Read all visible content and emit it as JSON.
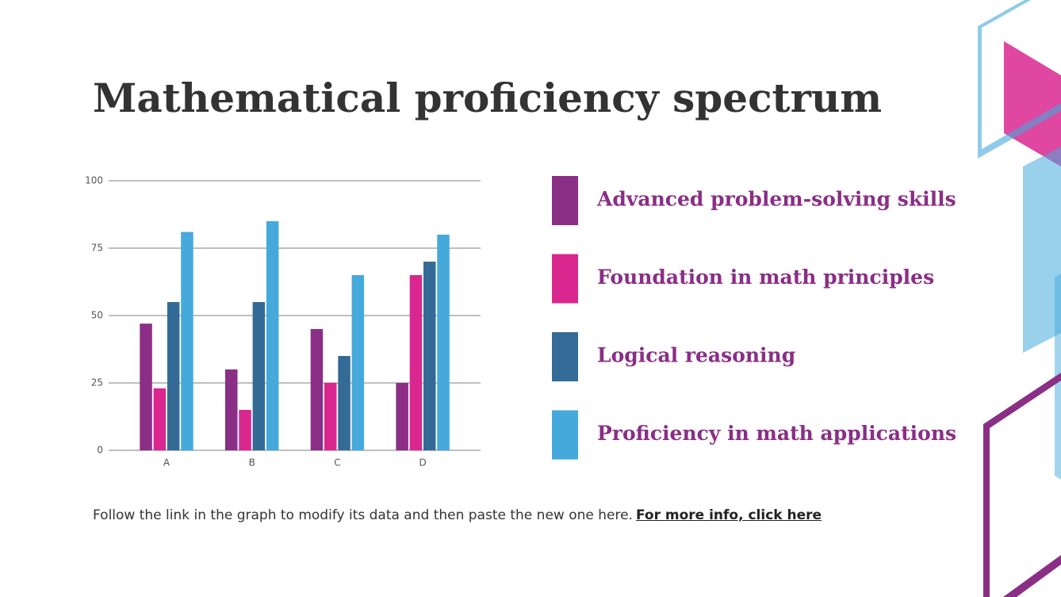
{
  "chart_data": {
    "type": "bar",
    "title": "Mathematical proficiency spectrum",
    "categories": [
      "A",
      "B",
      "C",
      "D"
    ],
    "series": [
      {
        "name": "Advanced problem-solving skills",
        "color": "#8a2e86",
        "values": [
          47,
          30,
          45,
          25
        ]
      },
      {
        "name": "Foundation in math principles",
        "color": "#d9278f",
        "values": [
          23,
          15,
          25,
          65
        ]
      },
      {
        "name": "Logical reasoning",
        "color": "#336a96",
        "values": [
          55,
          55,
          35,
          70
        ]
      },
      {
        "name": "Proficiency in math applications",
        "color": "#45a9db",
        "values": [
          81,
          85,
          65,
          80
        ]
      }
    ],
    "ylim": [
      0,
      100
    ],
    "yticks": [
      0,
      25,
      50,
      75,
      100
    ],
    "grid": true,
    "legend": "right"
  },
  "footer": {
    "text": "Follow the link in the graph to modify its data and then paste the new one here.",
    "link": "For more info, click here"
  }
}
